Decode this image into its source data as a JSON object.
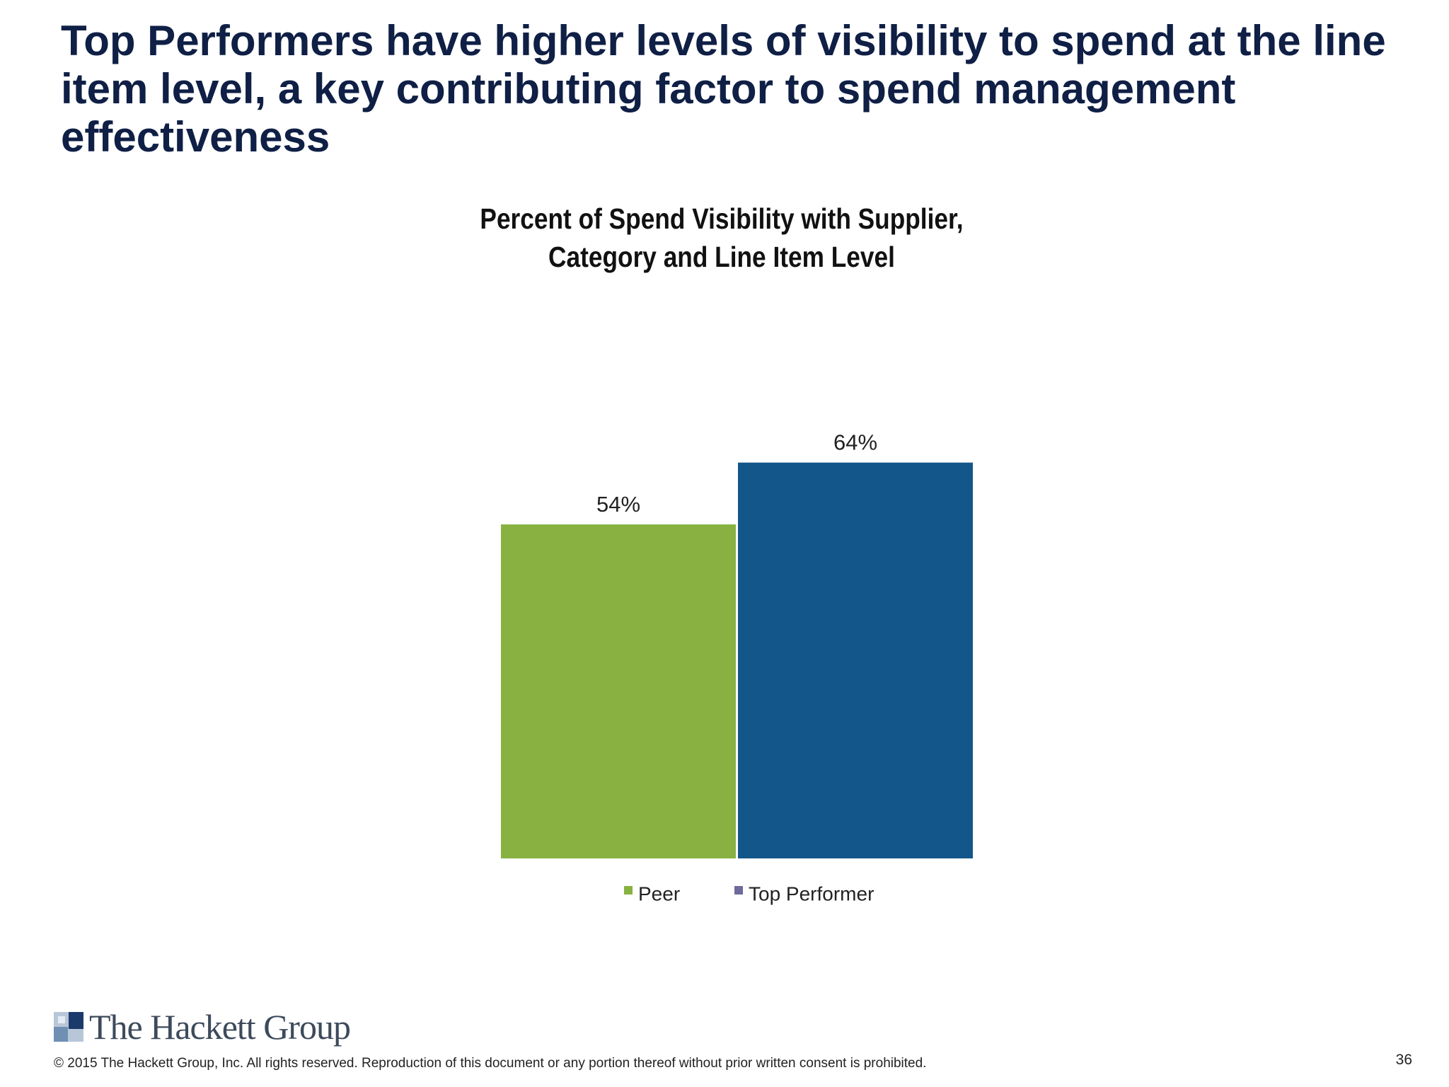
{
  "slide": {
    "title": "Top Performers have higher levels of visibility to spend at the line item level, a key contributing factor to spend management effectiveness",
    "page_number": "36"
  },
  "footer": {
    "logo_text": "The Hackett Group",
    "copyright": "© 2015 The Hackett Group, Inc.  All rights reserved. Reproduction of this document or any portion thereof without prior written consent is prohibited."
  },
  "chart_data": {
    "type": "bar",
    "title": "Percent of Spend Visibility with Supplier, Category and Line Item Level",
    "title_lines": [
      "Percent of Spend Visibility with Supplier,",
      "Category and Line Item Level"
    ],
    "categories": [
      ""
    ],
    "series": [
      {
        "name": "Peer",
        "values": [
          54
        ],
        "label": "54%",
        "color": "#88b141"
      },
      {
        "name": "Top Performer",
        "values": [
          64
        ],
        "label": "64%",
        "color": "#13578a"
      }
    ],
    "legend_marker_colors": [
      "#88b141",
      "#6f6a9e"
    ],
    "ylim": [
      0,
      100
    ],
    "grid": false,
    "legend": "bottom",
    "xlabel": "",
    "ylabel": ""
  }
}
